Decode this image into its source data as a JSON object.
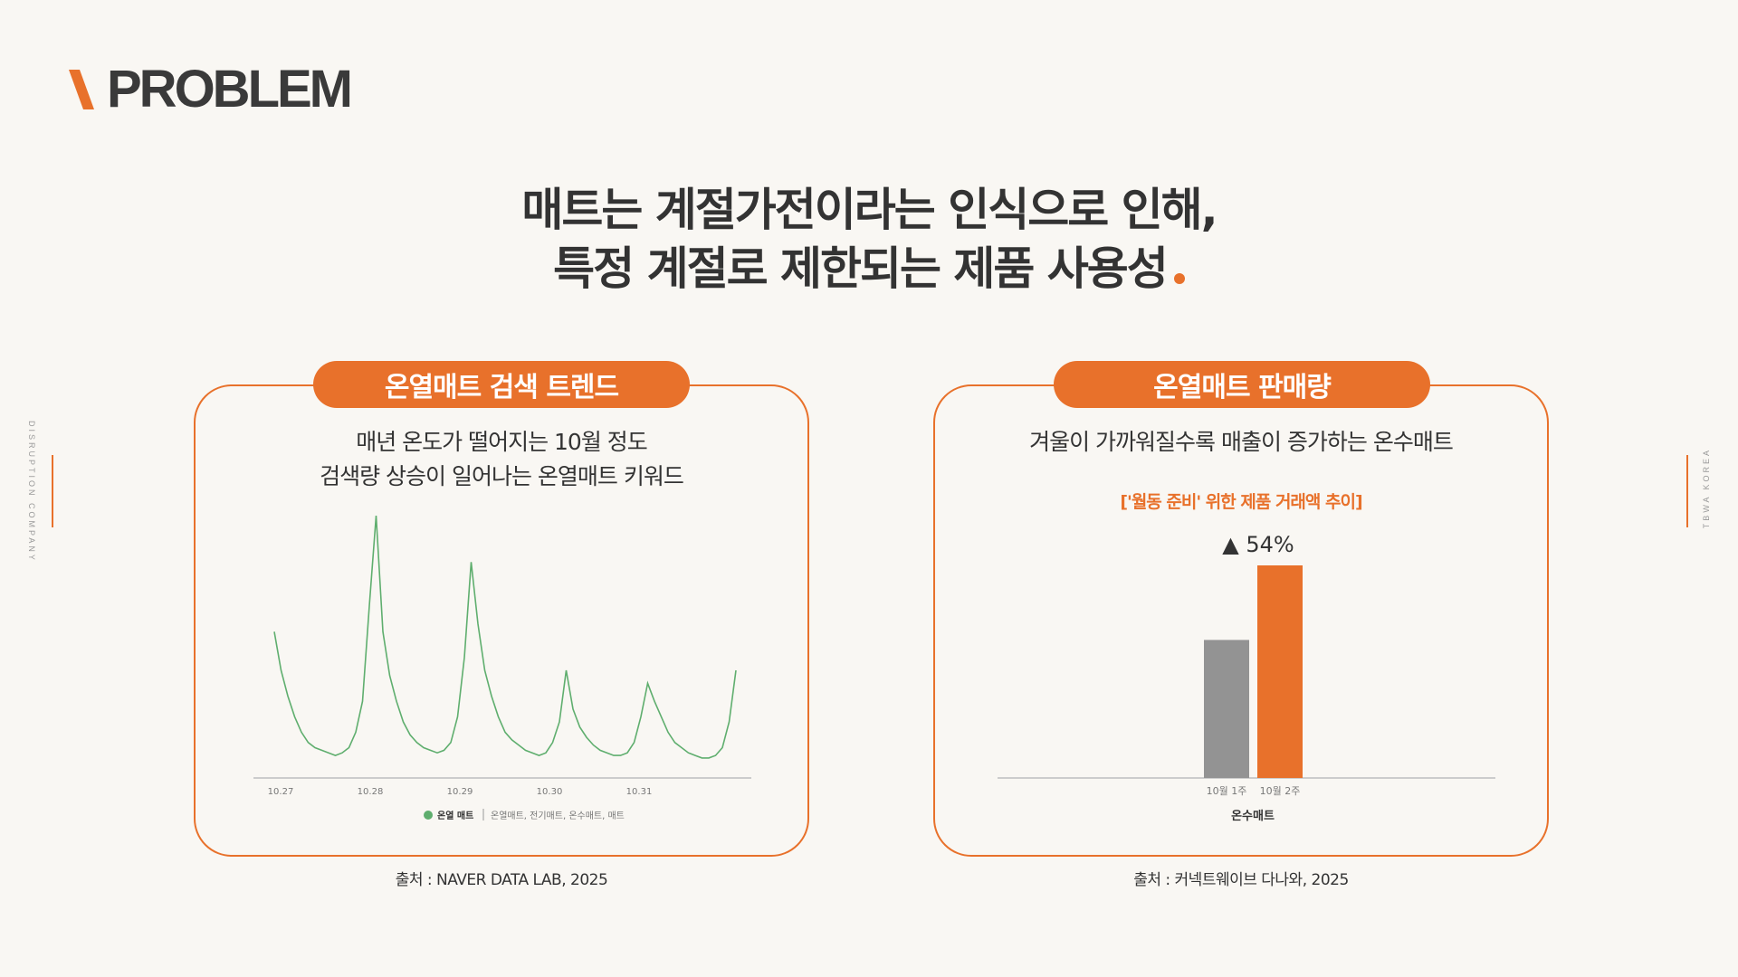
{
  "logo": {
    "text": "PROBLEM"
  },
  "side": {
    "left": "DISRUPTION COMPANY",
    "right": "TBWA KOREA"
  },
  "headline": {
    "line1": "매트는 계절가전이라는 인식으로 인해,",
    "line2": "특정 계절로 제한되는 제품 사용성"
  },
  "left_panel": {
    "pill": "온열매트 검색 트렌드",
    "sub1": "매년 온도가 떨어지는 10월 정도",
    "sub2": "검색량 상승이 일어나는 온열매트 키워드",
    "source": "출처 : NAVER DATA LAB, 2025"
  },
  "right_panel": {
    "pill": "온열매트 판매량",
    "sub1": "겨울이 가까워질수록 매출이 증가하는 온수매트",
    "sub2": "['월동 준비' 위한 제품 거래액 추이]",
    "source": "출처 : 커넥트웨이브 다나와, 2025"
  },
  "colors": {
    "accent": "#e8712b",
    "line_green": "#5fae6e",
    "bar_gray": "#939393"
  },
  "chart_data": [
    {
      "type": "line",
      "x_ticks": [
        "10.27",
        "10.28",
        "10.29",
        "10.30",
        "10.31"
      ],
      "series": [
        {
          "name": "온열 매트",
          "color": "#5fae6e",
          "values": [
            55,
            40,
            30,
            22,
            16,
            12,
            10,
            9,
            8,
            7,
            8,
            10,
            16,
            28,
            65,
            100,
            55,
            38,
            28,
            20,
            15,
            12,
            10,
            9,
            8,
            9,
            12,
            22,
            45,
            82,
            58,
            40,
            30,
            22,
            16,
            13,
            11,
            9,
            8,
            7,
            8,
            12,
            20,
            40,
            25,
            18,
            14,
            11,
            9,
            8,
            7,
            7,
            8,
            12,
            22,
            35,
            28,
            22,
            16,
            12,
            10,
            8,
            7,
            6,
            6,
            7,
            10,
            20,
            40
          ]
        }
      ],
      "legend": {
        "main": "온열 매트",
        "others": "온열매트, 전기매트, 온수매트, 매트"
      },
      "grid": false
    },
    {
      "type": "bar",
      "categories": [
        "10월 1주",
        "10월 2주"
      ],
      "values": [
        100,
        154
      ],
      "colors": [
        "#939393",
        "#e8712b"
      ],
      "xlabel": "온수매트",
      "annotation": "▲ 54%"
    }
  ]
}
